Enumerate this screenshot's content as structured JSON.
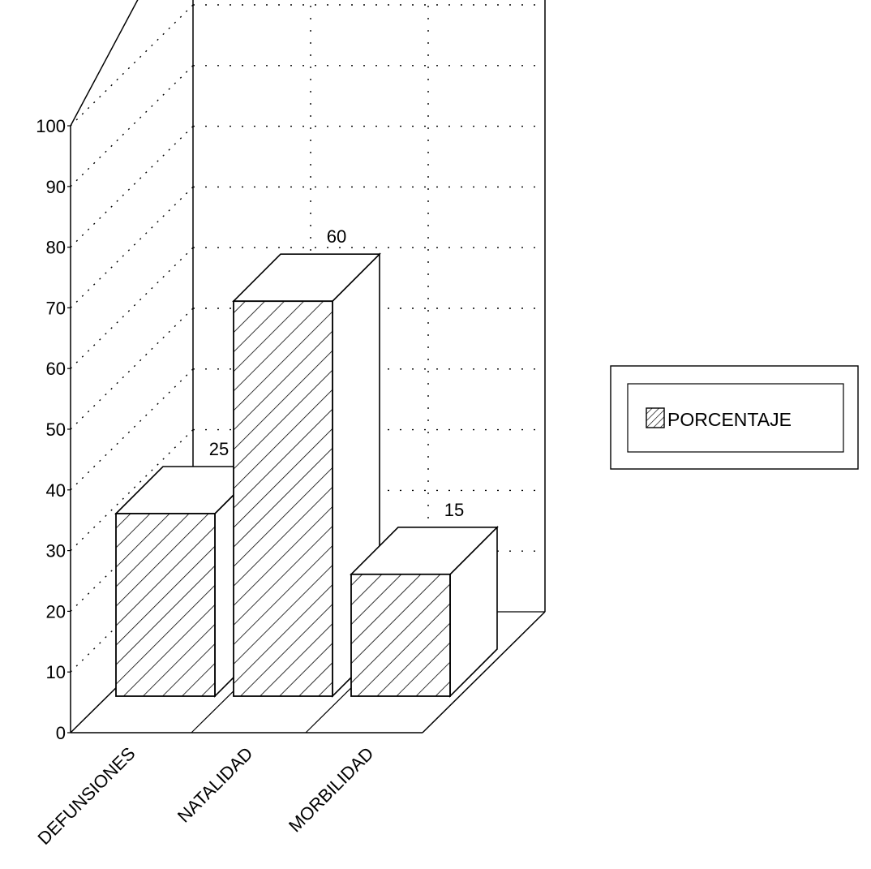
{
  "chart_data": {
    "type": "bar",
    "style": "3d",
    "categories": [
      "DEFUNSIONES",
      "NATALIDAD",
      "MORBILIDAD"
    ],
    "series": [
      {
        "name": "PORCENTAJE",
        "values": [
          25,
          60,
          15
        ]
      }
    ],
    "data_labels": [
      "25",
      "60",
      "15"
    ],
    "ylim": [
      0,
      100
    ],
    "yticks": [
      "0",
      "10",
      "20",
      "30",
      "40",
      "50",
      "60",
      "70",
      "80",
      "90",
      "100"
    ],
    "grid": true,
    "legend_position": "right",
    "bar_fill": "diagonal-hatch",
    "colors": {
      "line": "#000000",
      "background": "#ffffff",
      "bar_face": "#ffffff"
    }
  }
}
